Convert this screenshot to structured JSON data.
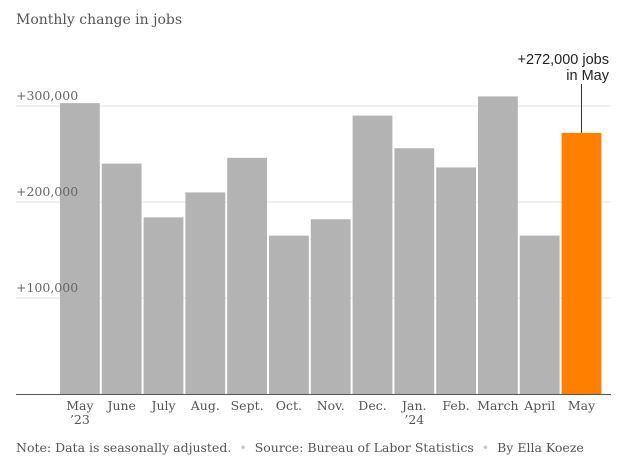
{
  "chart_data": {
    "type": "bar",
    "title": "Monthly change in jobs",
    "categories": [
      "May '23",
      "June",
      "July",
      "Aug.",
      "Sept.",
      "Oct.",
      "Nov.",
      "Dec.",
      "Jan. '24",
      "Feb.",
      "March",
      "April",
      "May"
    ],
    "category_labels": [
      [
        "May",
        "’23"
      ],
      [
        "June"
      ],
      [
        "July"
      ],
      [
        "Aug."
      ],
      [
        "Sept."
      ],
      [
        "Oct."
      ],
      [
        "Nov."
      ],
      [
        "Dec."
      ],
      [
        "Jan.",
        "’24"
      ],
      [
        "Feb."
      ],
      [
        "March"
      ],
      [
        "April"
      ],
      [
        "May"
      ]
    ],
    "values": [
      303000,
      240000,
      184000,
      210000,
      246000,
      165000,
      182000,
      290000,
      256000,
      236000,
      310000,
      165000,
      272000
    ],
    "highlight_index": 12,
    "colors": {
      "bar": "#b3b3b3",
      "highlight": "#ff7f00",
      "grid": "#e3e3e3",
      "axis": "#555555"
    },
    "ylim": [
      0,
      320000
    ],
    "yticks": [
      {
        "value": 100000,
        "label": "+100,000"
      },
      {
        "value": 200000,
        "label": "+200,000"
      },
      {
        "value": 300000,
        "label": "+300,000"
      }
    ],
    "grid": true,
    "xlabel": "",
    "ylabel": "",
    "annotation": {
      "lines": [
        "+272,000 jobs",
        "in May"
      ],
      "target_index": 12
    }
  },
  "footer": {
    "note": "Note: Data is seasonally adjusted.",
    "source": "Source: Bureau of Labor Statistics",
    "byline": "By Ella Koeze",
    "separator": "•"
  }
}
